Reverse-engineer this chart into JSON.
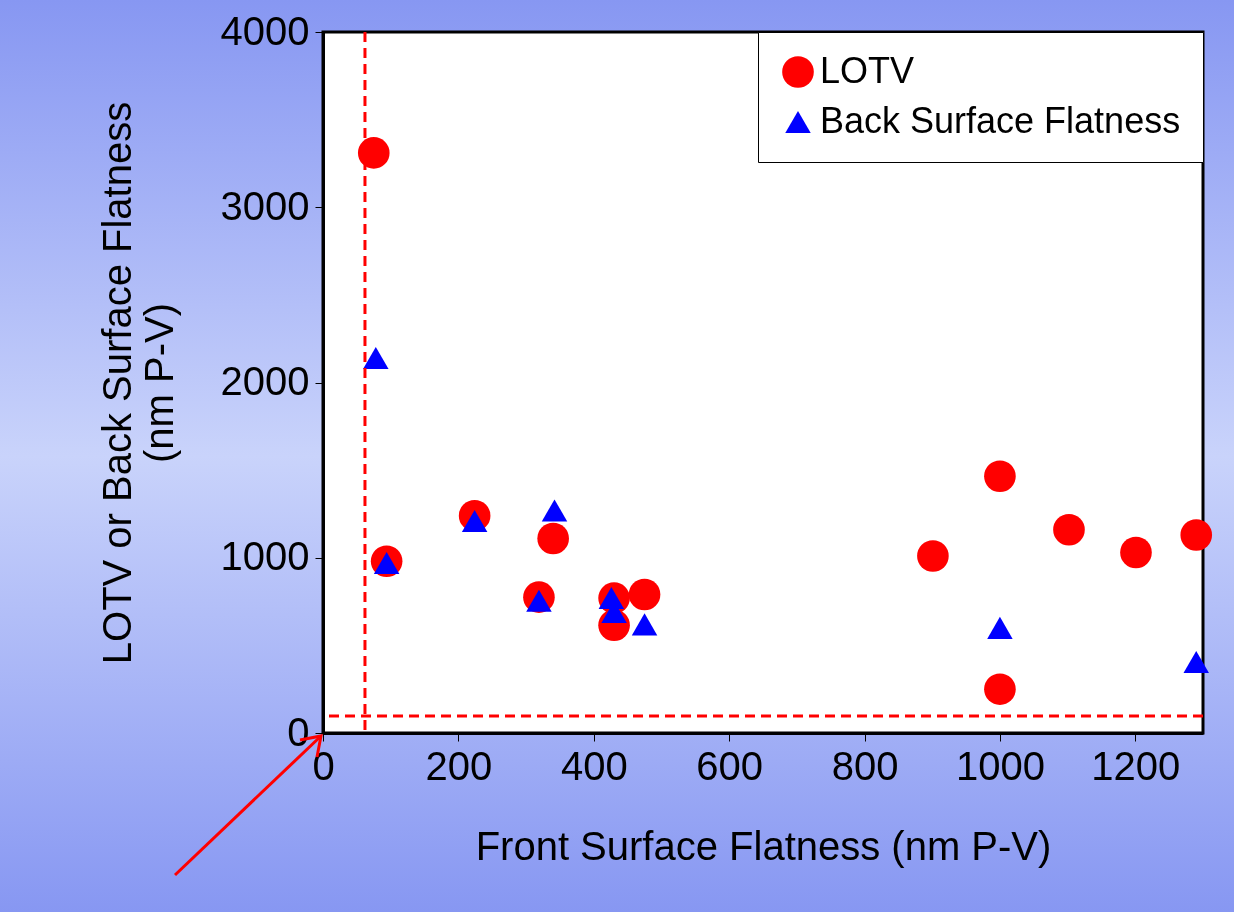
{
  "chart_data": {
    "type": "scatter",
    "xlabel": "Front Surface Flatness (nm P-V)",
    "ylabel": "LOTV  or Back Surface Flatness\n(nm P-V)",
    "xlim": [
      0,
      1300
    ],
    "xticks": [
      0,
      200,
      400,
      600,
      800,
      1000,
      1200
    ],
    "ylim": [
      0,
      4000
    ],
    "yticks": [
      0,
      1000,
      2000,
      3000,
      4000
    ],
    "grid": false,
    "legend": "top right",
    "series": [
      {
        "name": "LOTV",
        "color": "#ff0000",
        "marker": "circle",
        "x": [
          75,
          94,
          224,
          319,
          340,
          430,
          430,
          475,
          901,
          1000,
          1000,
          1102,
          1201,
          1290
        ],
        "values": [
          3310,
          980,
          1240,
          775,
          1110,
          770,
          615,
          790,
          1010,
          1465,
          250,
          1160,
          1030,
          1130
        ]
      },
      {
        "name": "Back Surface Flatness",
        "color": "#0000ff",
        "marker": "triangle",
        "x": [
          78,
          94,
          224,
          342,
          319,
          426,
          430,
          475,
          1000,
          1290
        ],
        "values": [
          2140,
          970,
          1210,
          1270,
          755,
          770,
          690,
          620,
          600,
          405
        ]
      }
    ],
    "ref_lines": [
      {
        "axis": "x",
        "value": 62,
        "color": "#ff0000",
        "line_style": "dashed"
      },
      {
        "axis": "y",
        "value": 97,
        "color": "#ff0000",
        "line_style": "dashed"
      }
    ]
  }
}
